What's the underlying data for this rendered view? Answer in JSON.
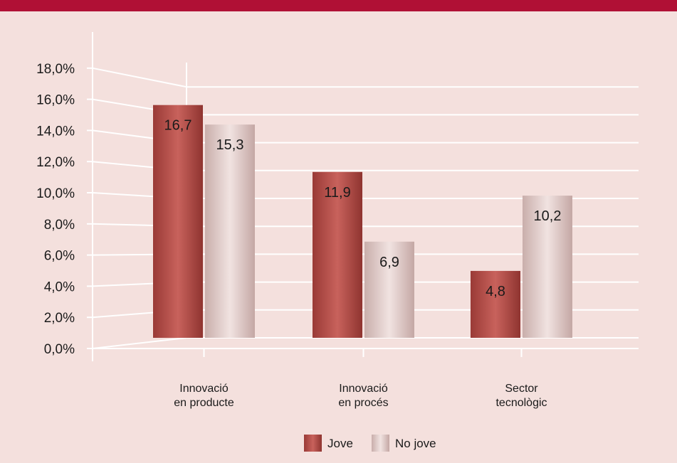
{
  "colors": {
    "top_bar": "#b01035",
    "background": "#f4e0dd",
    "jove": "#b04a45",
    "no_jove": "#d8c0bd"
  },
  "chart_data": {
    "type": "bar",
    "categories": [
      [
        "Innovació",
        "en producte"
      ],
      [
        "Innovació",
        "en procés"
      ],
      [
        "Sector",
        "tecnològic"
      ]
    ],
    "series": [
      {
        "name": "Jove",
        "values": [
          16.7,
          11.9,
          4.8
        ],
        "labels": [
          "16,7",
          "11,9",
          "4,8"
        ]
      },
      {
        "name": "No jove",
        "values": [
          15.3,
          6.9,
          10.2
        ],
        "labels": [
          "15,3",
          "6,9",
          "10,2"
        ]
      }
    ],
    "yticks": [
      "0,0%",
      "2,0%",
      "4,0%",
      "6,0%",
      "8,0%",
      "10,0%",
      "12,0%",
      "14,0%",
      "16,0%",
      "18,0%"
    ],
    "ylim": [
      0,
      18
    ],
    "grid": true,
    "legend_position": "bottom-center"
  }
}
